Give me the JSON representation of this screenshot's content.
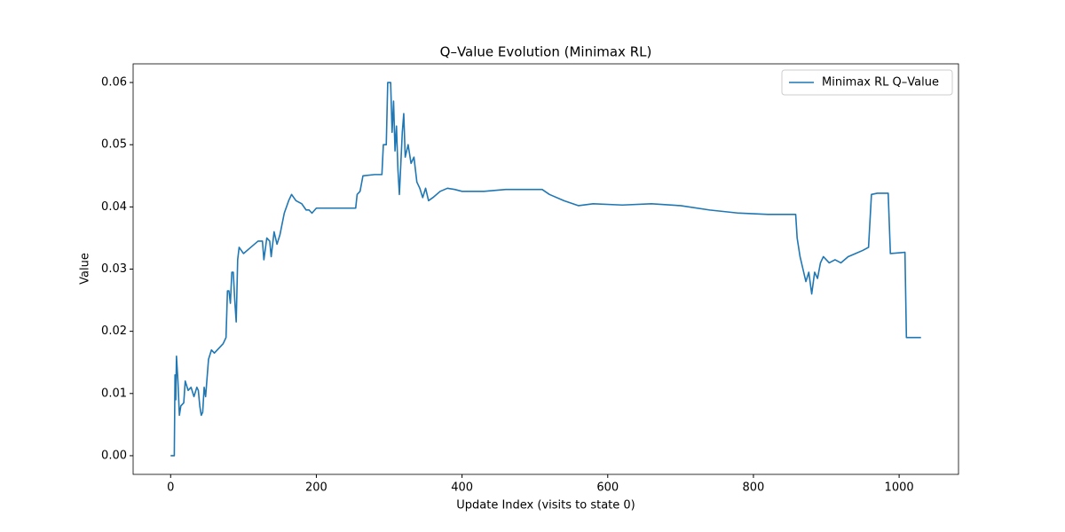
{
  "chart_data": {
    "type": "line",
    "title": "Q–Value Evolution (Minimax RL)",
    "x_label": "Update Index (visits to state 0)",
    "y_label": "Value",
    "legend": "upper right",
    "xlim": [
      -51.5,
      1081.5
    ],
    "xticks": [
      0,
      200,
      400,
      600,
      800,
      1000
    ],
    "ylim": [
      -0.003,
      0.063
    ],
    "yticks": [
      {
        "value": 0,
        "label": "0.00"
      },
      {
        "value": 0.01,
        "label": "0.01"
      },
      {
        "value": 0.02,
        "label": "0.02"
      },
      {
        "value": 0.03,
        "label": "0.03"
      },
      {
        "value": 0.04,
        "label": "0.04"
      },
      {
        "value": 0.05,
        "label": "0.05"
      },
      {
        "value": 0.06,
        "label": "0.06"
      }
    ],
    "x": [
      0,
      5,
      6,
      7,
      8,
      10,
      12,
      14,
      18,
      20,
      24,
      28,
      32,
      36,
      38,
      40,
      42,
      44,
      46,
      48,
      52,
      56,
      60,
      64,
      68,
      72,
      76,
      78,
      80,
      82,
      84,
      86,
      88,
      90,
      92,
      94,
      100,
      110,
      120,
      126,
      128,
      132,
      136,
      138,
      142,
      146,
      150,
      156,
      162,
      166,
      172,
      180,
      186,
      190,
      194,
      200,
      220,
      240,
      254,
      256,
      260,
      264,
      280,
      290,
      292,
      296,
      298,
      302,
      304,
      306,
      308,
      310,
      312,
      314,
      318,
      320,
      322,
      326,
      330,
      334,
      338,
      342,
      346,
      350,
      354,
      360,
      370,
      380,
      390,
      400,
      430,
      460,
      490,
      510,
      520,
      540,
      560,
      580,
      620,
      660,
      700,
      740,
      780,
      820,
      858,
      860,
      864,
      868,
      872,
      876,
      880,
      884,
      888,
      892,
      896,
      904,
      912,
      920,
      930,
      940,
      950,
      958,
      962,
      970,
      985,
      988,
      1008,
      1010,
      1030
    ],
    "series": [
      {
        "name": "Minimax RL Q–Value",
        "color": "#1f77b4",
        "values": [
          0,
          0,
          0.013,
          0.009,
          0.016,
          0.012,
          0.0065,
          0.008,
          0.0085,
          0.012,
          0.0105,
          0.011,
          0.0095,
          0.011,
          0.0105,
          0.008,
          0.0065,
          0.007,
          0.011,
          0.0095,
          0.0155,
          0.017,
          0.0165,
          0.017,
          0.0175,
          0.018,
          0.019,
          0.0265,
          0.0265,
          0.0245,
          0.0295,
          0.0295,
          0.025,
          0.0215,
          0.0315,
          0.0335,
          0.0325,
          0.0335,
          0.0345,
          0.0345,
          0.0315,
          0.035,
          0.0345,
          0.032,
          0.036,
          0.034,
          0.0355,
          0.039,
          0.041,
          0.042,
          0.041,
          0.0405,
          0.0395,
          0.0395,
          0.039,
          0.0398,
          0.0398,
          0.0398,
          0.0398,
          0.042,
          0.0425,
          0.045,
          0.0452,
          0.0452,
          0.05,
          0.05,
          0.06,
          0.06,
          0.052,
          0.057,
          0.049,
          0.053,
          0.046,
          0.042,
          0.052,
          0.055,
          0.048,
          0.05,
          0.047,
          0.048,
          0.044,
          0.043,
          0.0415,
          0.043,
          0.041,
          0.0415,
          0.0425,
          0.043,
          0.0428,
          0.0425,
          0.0425,
          0.0428,
          0.0428,
          0.0428,
          0.042,
          0.041,
          0.0402,
          0.0405,
          0.0403,
          0.0405,
          0.0402,
          0.0395,
          0.039,
          0.0388,
          0.0388,
          0.035,
          0.032,
          0.03,
          0.028,
          0.0295,
          0.026,
          0.0295,
          0.0285,
          0.031,
          0.032,
          0.031,
          0.0315,
          0.031,
          0.032,
          0.0325,
          0.033,
          0.0335,
          0.042,
          0.0422,
          0.0422,
          0.0325,
          0.0327,
          0.019,
          0.019
        ]
      }
    ]
  }
}
